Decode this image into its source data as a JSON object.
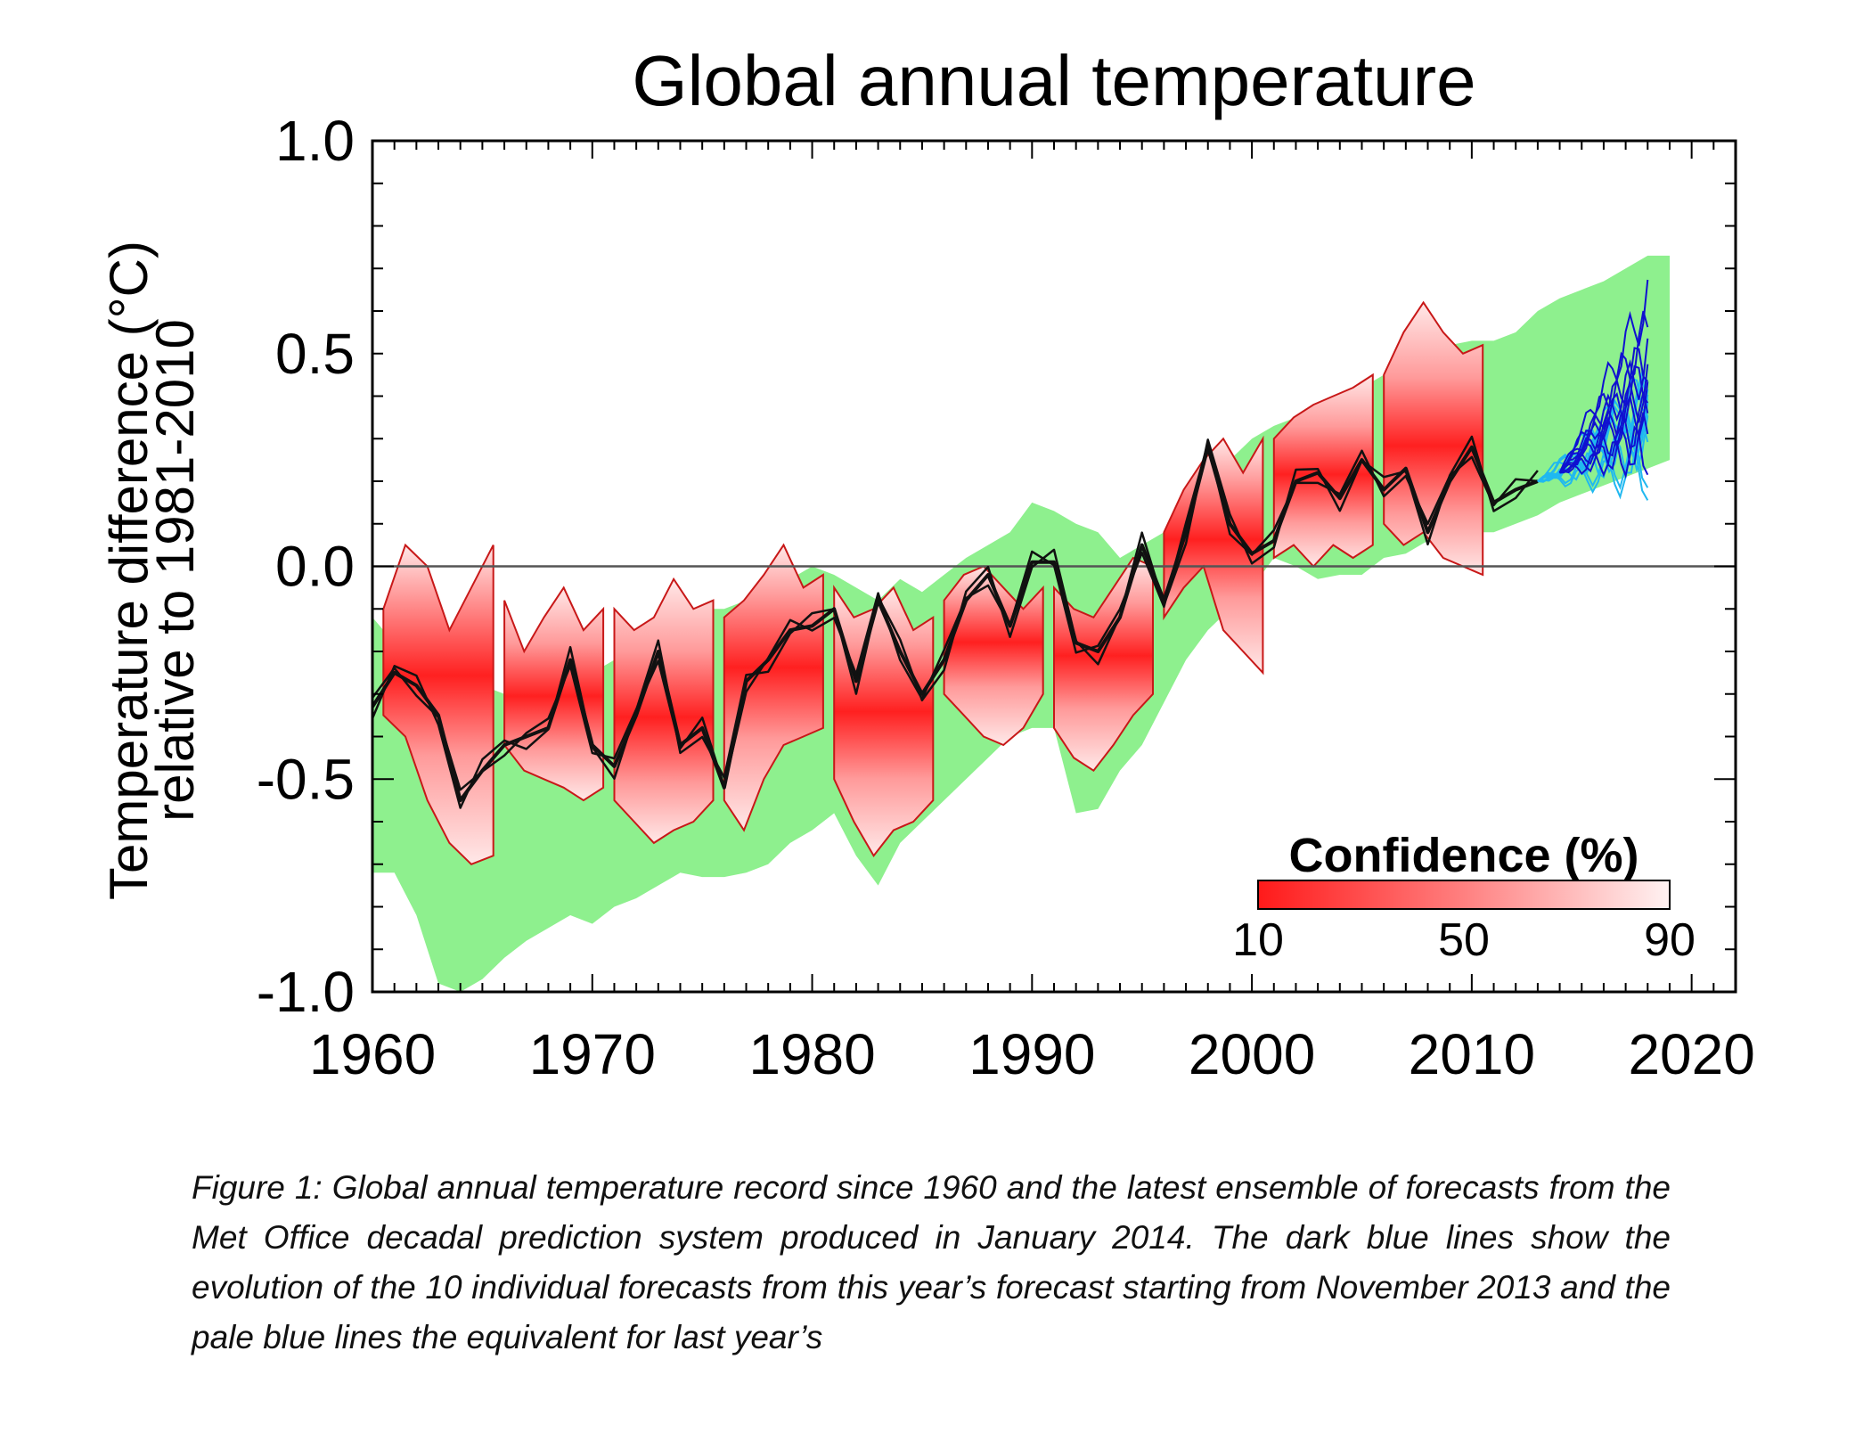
{
  "caption": "Figure 1: Global annual temperature record since 1960 and the latest ensemble of forecasts from the Met Office decadal prediction system produced in January 2014. The dark blue lines show the evolution of the 10 individual forecasts from this year’s forecast starting from November 2013 and the pale blue lines the equivalent for last year’s",
  "colors": {
    "observed_line": "#111111",
    "hindcast_band": "#8ef08e",
    "confidence_strong": "#ff2020",
    "confidence_weak": "#ffe8e8",
    "confidence_edge": "#c81818",
    "forecast_2014": "#1010d0",
    "forecast_2013": "#20b8f0",
    "zero_line": "#555555"
  },
  "chart_data": {
    "type": "line",
    "title": "Global annual temperature",
    "xlabel": "",
    "ylabel": "Temperature difference (°C) relative to 1981-2010",
    "ylabel_lines": [
      "Temperature difference (°C)",
      "relative to 1981-2010"
    ],
    "xlim": [
      1960,
      2022
    ],
    "ylim": [
      -1.0,
      1.0
    ],
    "x_ticks": [
      "1960",
      "1970",
      "1980",
      "1990",
      "2000",
      "2010",
      "2020"
    ],
    "y_ticks": [
      "1.0",
      "0.5",
      "0.0",
      "-0.5",
      "-1.0"
    ],
    "grid": false,
    "reference_line": 0.0,
    "legend": {
      "title": "Confidence (%)",
      "ticks": [
        "10",
        "50",
        "90"
      ],
      "position": "bottom-right",
      "range": [
        10,
        90
      ]
    },
    "series": [
      {
        "kind": "observed",
        "x": [
          1960,
          1961,
          1962,
          1963,
          1964,
          1965,
          1966,
          1967,
          1968,
          1969,
          1970,
          1971,
          1972,
          1973,
          1974,
          1975,
          1976,
          1977,
          1978,
          1979,
          1980,
          1981,
          1982,
          1983,
          1984,
          1985,
          1986,
          1987,
          1988,
          1989,
          1990,
          1991,
          1992,
          1993,
          1994,
          1995,
          1996,
          1997,
          1998,
          1999,
          2000,
          2001,
          2002,
          2003,
          2004,
          2005,
          2006,
          2007,
          2008,
          2009,
          2010,
          2011,
          2012,
          2013
        ],
        "values": [
          -0.33,
          -0.25,
          -0.28,
          -0.35,
          -0.55,
          -0.48,
          -0.42,
          -0.4,
          -0.38,
          -0.22,
          -0.42,
          -0.47,
          -0.35,
          -0.2,
          -0.42,
          -0.38,
          -0.52,
          -0.27,
          -0.22,
          -0.15,
          -0.14,
          -0.1,
          -0.27,
          -0.08,
          -0.2,
          -0.3,
          -0.22,
          -0.08,
          -0.02,
          -0.14,
          0.01,
          0.01,
          -0.18,
          -0.2,
          -0.12,
          0.05,
          -0.08,
          0.08,
          0.28,
          0.1,
          0.03,
          0.06,
          0.2,
          0.22,
          0.16,
          0.25,
          0.18,
          0.23,
          0.08,
          0.2,
          0.28,
          0.15,
          0.18,
          0.2
        ]
      },
      {
        "kind": "hindcast_band",
        "x": [
          1960,
          1961,
          1962,
          1963,
          1964,
          1965,
          1966,
          1967,
          1968,
          1969,
          1970,
          1971,
          1972,
          1973,
          1974,
          1975,
          1976,
          1977,
          1978,
          1979,
          1980,
          1981,
          1982,
          1983,
          1984,
          1985,
          1986,
          1987,
          1988,
          1989,
          1990,
          1991,
          1992,
          1993,
          1994,
          1995,
          1996,
          1997,
          1998,
          1999,
          2000,
          2001,
          2002,
          2003,
          2004,
          2005,
          2006,
          2007,
          2008,
          2009,
          2010,
          2011,
          2012,
          2013,
          2014,
          2015,
          2016,
          2017,
          2018,
          2019
        ],
        "upper": [
          -0.12,
          -0.18,
          -0.25,
          -0.3,
          -0.3,
          -0.28,
          -0.3,
          -0.27,
          -0.25,
          -0.28,
          -0.25,
          -0.22,
          -0.26,
          -0.2,
          -0.18,
          -0.1,
          -0.1,
          -0.08,
          -0.05,
          -0.03,
          0.0,
          -0.02,
          -0.05,
          -0.08,
          -0.03,
          -0.06,
          -0.02,
          0.02,
          0.05,
          0.08,
          0.15,
          0.13,
          0.1,
          0.08,
          0.02,
          0.05,
          0.08,
          0.1,
          0.18,
          0.25,
          0.3,
          0.33,
          0.35,
          0.37,
          0.4,
          0.42,
          0.45,
          0.48,
          0.5,
          0.52,
          0.53,
          0.53,
          0.55,
          0.6,
          0.63,
          0.65,
          0.67,
          0.7,
          0.73,
          0.73
        ],
        "lower": [
          -0.72,
          -0.72,
          -0.82,
          -0.98,
          -1.0,
          -0.97,
          -0.92,
          -0.88,
          -0.85,
          -0.82,
          -0.84,
          -0.8,
          -0.78,
          -0.75,
          -0.72,
          -0.73,
          -0.73,
          -0.72,
          -0.7,
          -0.65,
          -0.62,
          -0.58,
          -0.68,
          -0.75,
          -0.65,
          -0.6,
          -0.55,
          -0.5,
          -0.45,
          -0.4,
          -0.38,
          -0.38,
          -0.58,
          -0.57,
          -0.48,
          -0.42,
          -0.32,
          -0.22,
          -0.15,
          -0.1,
          -0.05,
          0.02,
          0.0,
          -0.03,
          -0.02,
          -0.02,
          0.02,
          0.03,
          0.06,
          0.08,
          0.08,
          0.08,
          0.1,
          0.12,
          0.15,
          0.17,
          0.19,
          0.21,
          0.23,
          0.25
        ]
      },
      {
        "kind": "confidence_fans",
        "segments": [
          {
            "start": 1960.5,
            "end": 1965.5,
            "upper_edge": [
              -0.1,
              0.05,
              0.0,
              -0.15,
              -0.05,
              0.05
            ],
            "lower_edge": [
              -0.35,
              -0.4,
              -0.55,
              -0.65,
              -0.7,
              -0.68
            ],
            "center": [
              -0.22,
              -0.17,
              -0.2,
              -0.28,
              -0.35,
              -0.32
            ]
          },
          {
            "start": 1966,
            "end": 1970.5,
            "upper_edge": [
              -0.08,
              -0.2,
              -0.12,
              -0.05,
              -0.15,
              -0.1
            ],
            "lower_edge": [
              -0.42,
              -0.48,
              -0.5,
              -0.52,
              -0.55,
              -0.52
            ],
            "center": [
              -0.28,
              -0.33,
              -0.3,
              -0.27,
              -0.33,
              -0.32
            ]
          },
          {
            "start": 1971,
            "end": 1975.5,
            "upper_edge": [
              -0.1,
              -0.15,
              -0.12,
              -0.03,
              -0.1,
              -0.08
            ],
            "lower_edge": [
              -0.55,
              -0.6,
              -0.65,
              -0.62,
              -0.6,
              -0.55
            ],
            "center": [
              -0.33,
              -0.37,
              -0.38,
              -0.34,
              -0.36,
              -0.35
            ]
          },
          {
            "start": 1976,
            "end": 1980.5,
            "upper_edge": [
              -0.12,
              -0.08,
              -0.02,
              0.05,
              -0.05,
              -0.02
            ],
            "lower_edge": [
              -0.55,
              -0.62,
              -0.5,
              -0.42,
              -0.4,
              -0.38
            ],
            "center": [
              -0.3,
              -0.32,
              -0.23,
              -0.18,
              -0.2,
              -0.2
            ]
          },
          {
            "start": 1981,
            "end": 1985.5,
            "upper_edge": [
              -0.05,
              -0.12,
              -0.1,
              -0.05,
              -0.15,
              -0.12
            ],
            "lower_edge": [
              -0.5,
              -0.6,
              -0.68,
              -0.62,
              -0.6,
              -0.55
            ],
            "center": [
              -0.28,
              -0.35,
              -0.38,
              -0.35,
              -0.36,
              -0.33
            ]
          },
          {
            "start": 1986,
            "end": 1990.5,
            "upper_edge": [
              -0.08,
              -0.02,
              0.0,
              -0.05,
              -0.1,
              -0.05
            ],
            "lower_edge": [
              -0.3,
              -0.35,
              -0.4,
              -0.42,
              -0.38,
              -0.3
            ],
            "center": [
              -0.18,
              -0.16,
              -0.18,
              -0.2,
              -0.2,
              -0.15
            ]
          },
          {
            "start": 1991,
            "end": 1995.5,
            "upper_edge": [
              -0.05,
              -0.1,
              -0.12,
              -0.05,
              0.02,
              0.0
            ],
            "lower_edge": [
              -0.38,
              -0.45,
              -0.48,
              -0.42,
              -0.35,
              -0.3
            ],
            "center": [
              -0.2,
              -0.25,
              -0.27,
              -0.22,
              -0.17,
              -0.15
            ]
          },
          {
            "start": 1996,
            "end": 2000.5,
            "upper_edge": [
              0.08,
              0.18,
              0.25,
              0.3,
              0.22,
              0.3
            ],
            "lower_edge": [
              -0.12,
              -0.05,
              0.0,
              -0.15,
              -0.2,
              -0.25
            ],
            "center": [
              0.0,
              0.05,
              0.15,
              0.1,
              0.03,
              0.05
            ]
          },
          {
            "start": 2001,
            "end": 2005.5,
            "upper_edge": [
              0.3,
              0.35,
              0.38,
              0.4,
              0.42,
              0.45
            ],
            "lower_edge": [
              0.02,
              0.05,
              0.0,
              0.05,
              0.02,
              0.05
            ],
            "center": [
              0.18,
              0.2,
              0.22,
              0.23,
              0.22,
              0.25
            ]
          },
          {
            "start": 2006,
            "end": 2010.5,
            "upper_edge": [
              0.45,
              0.55,
              0.62,
              0.55,
              0.5,
              0.52
            ],
            "lower_edge": [
              0.1,
              0.05,
              0.08,
              0.02,
              0.0,
              -0.02
            ],
            "center": [
              0.28,
              0.3,
              0.33,
              0.28,
              0.25,
              0.26
            ]
          }
        ]
      },
      {
        "kind": "forecast_2013",
        "x_start": 2013.0,
        "x_end": 2018.0,
        "start_value": 0.2,
        "end_values": [
          0.35,
          0.28,
          0.42,
          0.3,
          0.38,
          0.25,
          0.33,
          0.4,
          0.22,
          0.36
        ]
      },
      {
        "kind": "forecast_2014",
        "x_start": 2014.0,
        "x_end": 2018.0,
        "start_value": 0.22,
        "end_values": [
          0.62,
          0.55,
          0.45,
          0.38,
          0.3,
          0.5,
          0.42,
          0.35,
          0.28,
          0.48
        ]
      }
    ]
  }
}
